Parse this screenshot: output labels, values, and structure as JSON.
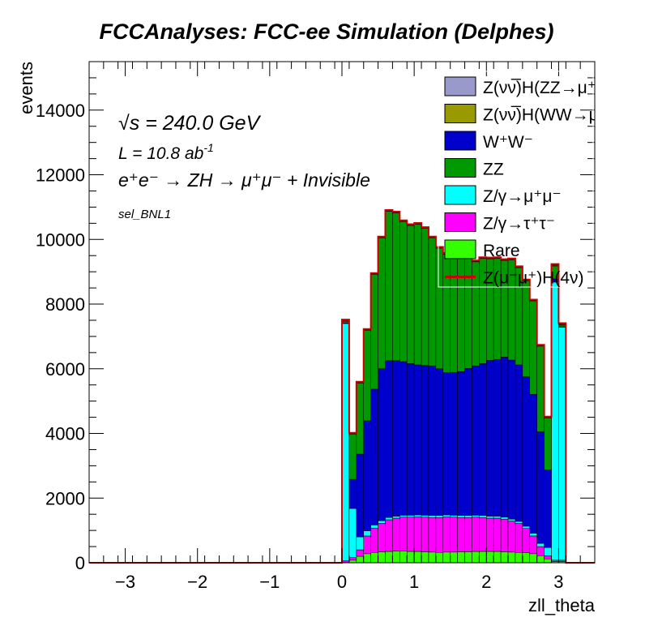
{
  "chart_data": {
    "type": "bar",
    "title": "FCCAnalyses: FCC-ee Simulation (Delphes)",
    "xlabel": "zll_theta",
    "ylabel": "events",
    "xlim": [
      -3.5,
      3.5
    ],
    "ylim": [
      0,
      15500
    ],
    "x_ticks": [
      -3,
      -2,
      -1,
      0,
      1,
      2,
      3
    ],
    "x_tick_labels": [
      "−3",
      "−2",
      "−1",
      "0",
      "1",
      "2",
      "3"
    ],
    "y_ticks": [
      0,
      2000,
      4000,
      6000,
      8000,
      10000,
      12000,
      14000
    ],
    "y_tick_labels": [
      "0",
      "2000",
      "4000",
      "6000",
      "8000",
      "10000",
      "12000",
      "14000"
    ],
    "annotations": {
      "sqrt_s_prefix": "√s",
      "energy": "= 240.0 GeV",
      "luminosity": "L = 10.8 ab",
      "luminosity_exp": "-1",
      "process": "e⁺e⁻ → ZH → μ⁺μ⁻ + Invisible",
      "selection": "sel_BNL1"
    },
    "legend_position": "top-right",
    "legend": [
      {
        "label": "Z(νν̅)H(ZZ→μ⁺μ⁻ν⁺ν⁻)",
        "color": "#9999cc",
        "style": "fill"
      },
      {
        "label": "Z(νν̅)H(WW→μ⁺νμ⁻ν)",
        "color": "#999900",
        "style": "fill"
      },
      {
        "label": "W⁺W⁻",
        "color": "#0000cc",
        "style": "fill"
      },
      {
        "label": "ZZ",
        "color": "#009900",
        "style": "fill"
      },
      {
        "label": "Z/γ→μ⁺μ⁻",
        "color": "#00ffff",
        "style": "fill"
      },
      {
        "label": "Z/γ→τ⁺τ⁻",
        "color": "#ff00ff",
        "style": "fill"
      },
      {
        "label": "Rare",
        "color": "#33ff00",
        "style": "fill"
      },
      {
        "label": "Z(μ⁻μ⁺)H(4ν)",
        "color": "#cc0000",
        "style": "line"
      }
    ],
    "bin_edges": [
      -3.5,
      0.0,
      0.1,
      0.2,
      0.3,
      0.4,
      0.5,
      0.6,
      0.7,
      0.8,
      0.9,
      1.0,
      1.1,
      1.2,
      1.3,
      1.4,
      1.5,
      1.6,
      1.7,
      1.8,
      1.9,
      2.0,
      2.1,
      2.2,
      2.3,
      2.4,
      2.5,
      2.6,
      2.7,
      2.8,
      2.9,
      3.0,
      3.1,
      3.5
    ],
    "series": [
      {
        "name": "Rare",
        "color": "#33ff00",
        "values": [
          0,
          20,
          80,
          200,
          280,
          320,
          340,
          350,
          360,
          360,
          350,
          350,
          340,
          330,
          320,
          330,
          330,
          340,
          340,
          350,
          350,
          350,
          350,
          340,
          330,
          320,
          310,
          280,
          220,
          120,
          40,
          40,
          0
        ]
      },
      {
        "name": "Z/γ→τ⁺τ⁻",
        "color": "#ff00ff",
        "values": [
          0,
          40,
          80,
          200,
          550,
          750,
          880,
          980,
          1020,
          1050,
          1060,
          1070,
          1070,
          1070,
          1080,
          1090,
          1080,
          1060,
          1060,
          1060,
          1050,
          1030,
          1030,
          1010,
          960,
          900,
          750,
          550,
          280,
          100,
          40,
          40,
          0
        ]
      },
      {
        "name": "Z/γ→μ⁺μ⁻",
        "color": "#00ffff",
        "values": [
          0,
          7340,
          1520,
          400,
          160,
          100,
          80,
          70,
          60,
          60,
          60,
          60,
          60,
          60,
          60,
          60,
          60,
          60,
          60,
          60,
          60,
          60,
          60,
          60,
          60,
          60,
          70,
          80,
          100,
          250,
          8600,
          7200,
          0
        ]
      },
      {
        "name": "W⁺W⁻",
        "color": "#0000cc",
        "values": [
          0,
          20,
          900,
          2560,
          3400,
          4200,
          4700,
          4850,
          4810,
          4750,
          4690,
          4640,
          4630,
          4630,
          4540,
          4400,
          4420,
          4450,
          4550,
          4620,
          4700,
          4820,
          4850,
          4950,
          4920,
          4840,
          4620,
          4300,
          3450,
          2400,
          100,
          20,
          0
        ]
      },
      {
        "name": "ZZ",
        "color": "#009900",
        "values": [
          0,
          40,
          1400,
          2200,
          2800,
          3550,
          4050,
          4620,
          4570,
          4330,
          4270,
          4350,
          4240,
          3960,
          3730,
          3660,
          3640,
          3500,
          3390,
          3220,
          3250,
          3140,
          3120,
          2990,
          3100,
          3010,
          2970,
          2890,
          2650,
          1610,
          400,
          50,
          0
        ]
      },
      {
        "name": "Z(νν̅)H(WW→μ⁺νμ⁻ν)",
        "color": "#999900",
        "values": [
          0,
          20,
          15,
          15,
          15,
          15,
          15,
          15,
          15,
          15,
          15,
          15,
          15,
          15,
          15,
          15,
          15,
          15,
          15,
          15,
          15,
          15,
          15,
          15,
          15,
          15,
          15,
          15,
          15,
          15,
          20,
          20,
          0
        ]
      },
      {
        "name": "Z(νν̅)H(ZZ→μ⁺μ⁻ν⁺ν⁻)",
        "color": "#9999cc",
        "values": [
          0,
          10,
          5,
          5,
          5,
          5,
          5,
          5,
          5,
          5,
          5,
          5,
          5,
          5,
          5,
          5,
          5,
          5,
          5,
          5,
          5,
          5,
          5,
          5,
          5,
          5,
          5,
          5,
          5,
          5,
          10,
          10,
          0
        ]
      }
    ],
    "signal": {
      "name": "Z(μ⁻μ⁺)H(4ν)",
      "color": "#cc0000",
      "values": [
        0,
        30,
        20,
        20,
        20,
        20,
        20,
        20,
        20,
        20,
        20,
        20,
        20,
        20,
        20,
        20,
        20,
        20,
        20,
        20,
        20,
        20,
        20,
        20,
        20,
        20,
        20,
        20,
        20,
        20,
        30,
        30,
        0
      ]
    }
  }
}
